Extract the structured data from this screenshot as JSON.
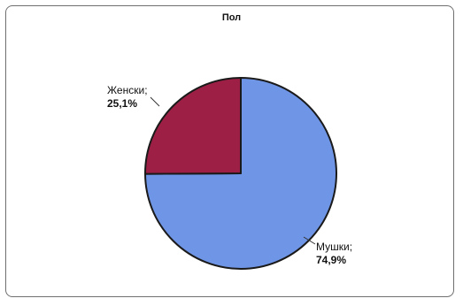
{
  "chart_data": {
    "type": "pie",
    "title": "Пол",
    "series": [
      {
        "name": "",
        "values": [
          74.9,
          25.1
        ],
        "labels": [
          "Мушки;",
          "Женски;"
        ],
        "value_labels": [
          "74,9%",
          "25,1%"
        ],
        "colors": [
          "#6f95e6",
          "#9e1f45"
        ]
      }
    ],
    "legend": "none",
    "grid": false
  }
}
